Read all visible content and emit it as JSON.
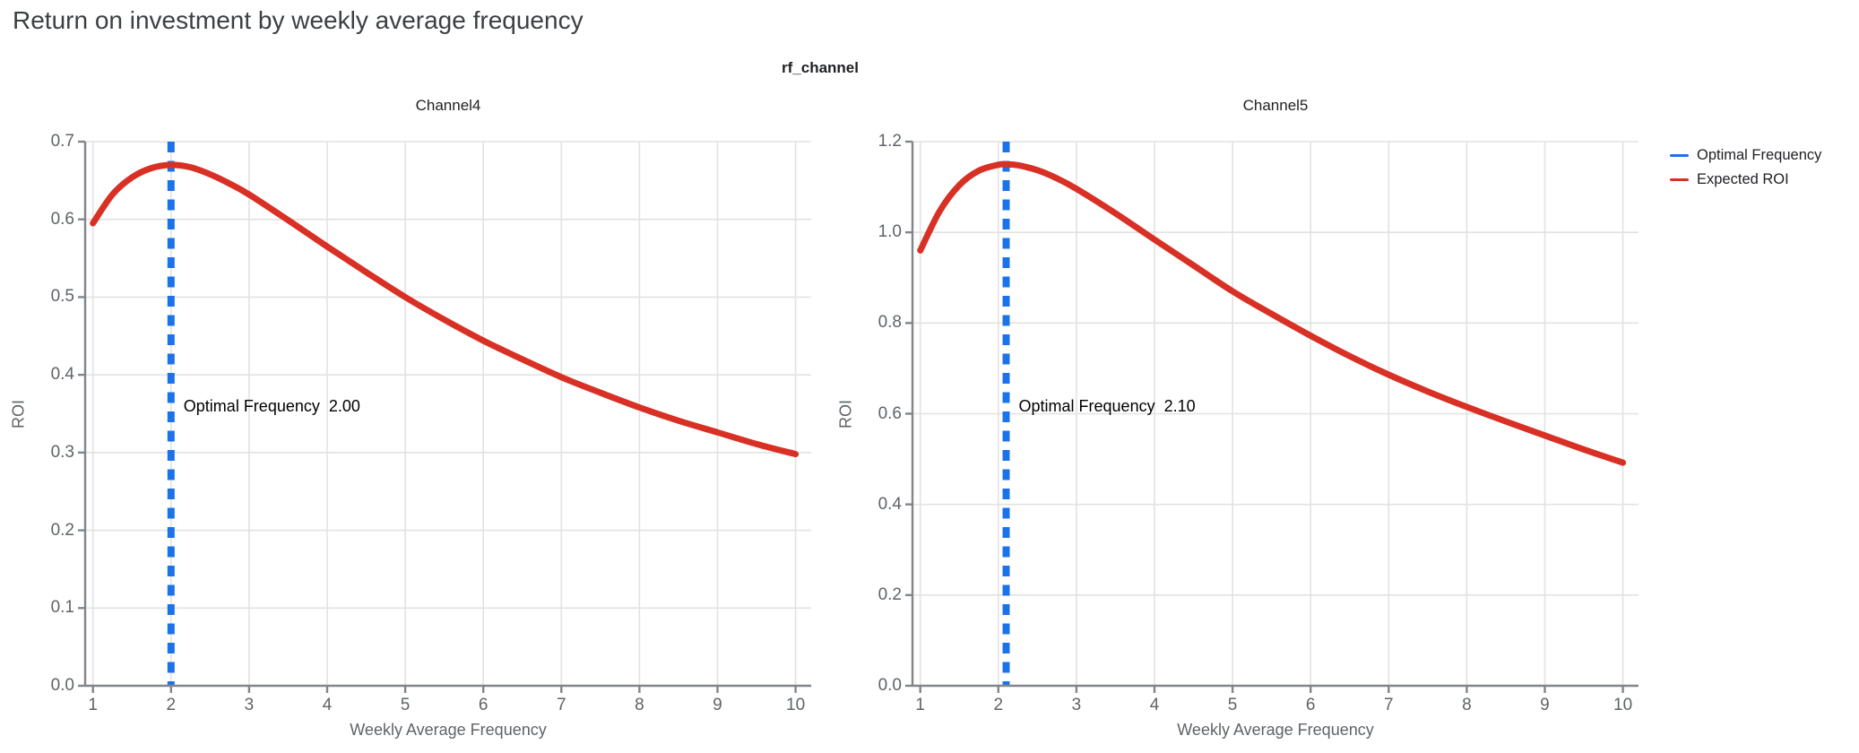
{
  "page": {
    "title": "Return on investment by weekly average frequency"
  },
  "figure": {
    "title": "rf_channel"
  },
  "colors": {
    "expected_roi": "#d93025",
    "optimal_frequency": "#1a73e8",
    "grid": "#e2e2e2",
    "axis": "#80868b",
    "tick_label": "#5f6368",
    "page_title": "#3c4043"
  },
  "legend": [
    {
      "label": "Optimal Frequency",
      "color": "#1a73e8"
    },
    {
      "label": "Expected ROI",
      "color": "#d93025"
    }
  ],
  "chart_data": [
    {
      "type": "line",
      "title": "Channel4",
      "xlabel": "Weekly Average Frequency",
      "ylabel": "ROI",
      "x_range": [
        0.9,
        10.2
      ],
      "y_range": [
        0,
        0.7
      ],
      "x_ticks": [
        1,
        2,
        3,
        4,
        5,
        6,
        7,
        8,
        9,
        10
      ],
      "y_ticks": [
        "0.0",
        "0.1",
        "0.2",
        "0.3",
        "0.4",
        "0.5",
        "0.6",
        "0.7"
      ],
      "optimal_frequency": 2.0,
      "annotation": "Optimal Frequency  2.00",
      "series": [
        {
          "name": "Expected ROI",
          "kind": "curve",
          "color": "#d93025",
          "x": [
            1,
            1.25,
            1.5,
            1.75,
            2,
            2.25,
            2.5,
            2.75,
            3,
            3.5,
            4,
            4.5,
            5,
            5.5,
            6,
            6.5,
            7,
            7.5,
            8,
            8.5,
            9,
            9.5,
            10
          ],
          "y": [
            0.595,
            0.632,
            0.654,
            0.666,
            0.67,
            0.667,
            0.658,
            0.646,
            0.632,
            0.599,
            0.565,
            0.532,
            0.5,
            0.471,
            0.444,
            0.42,
            0.397,
            0.377,
            0.358,
            0.341,
            0.326,
            0.311,
            0.298
          ]
        },
        {
          "name": "Optimal Frequency",
          "kind": "vline",
          "color": "#1a73e8",
          "x": 2.0
        }
      ]
    },
    {
      "type": "line",
      "title": "Channel5",
      "xlabel": "Weekly Average Frequency",
      "ylabel": "ROI",
      "x_range": [
        0.9,
        10.2
      ],
      "y_range": [
        0,
        1.2
      ],
      "x_ticks": [
        1,
        2,
        3,
        4,
        5,
        6,
        7,
        8,
        9,
        10
      ],
      "y_ticks": [
        "0.0",
        "0.2",
        "0.4",
        "0.6",
        "0.8",
        "1.0",
        "1.2"
      ],
      "optimal_frequency": 2.1,
      "annotation": "Optimal Frequency  2.10",
      "series": [
        {
          "name": "Expected ROI",
          "kind": "curve",
          "color": "#d93025",
          "x": [
            1,
            1.25,
            1.5,
            1.75,
            2,
            2.1,
            2.25,
            2.5,
            2.75,
            3,
            3.5,
            4,
            4.5,
            5,
            5.5,
            6,
            6.5,
            7,
            7.5,
            8,
            8.5,
            9,
            9.5,
            10
          ],
          "y": [
            0.96,
            1.047,
            1.104,
            1.136,
            1.149,
            1.15,
            1.148,
            1.137,
            1.119,
            1.096,
            1.042,
            0.984,
            0.927,
            0.87,
            0.82,
            0.772,
            0.727,
            0.686,
            0.649,
            0.615,
            0.583,
            0.552,
            0.521,
            0.492
          ]
        },
        {
          "name": "Optimal Frequency",
          "kind": "vline",
          "color": "#1a73e8",
          "x": 2.1
        }
      ]
    }
  ]
}
